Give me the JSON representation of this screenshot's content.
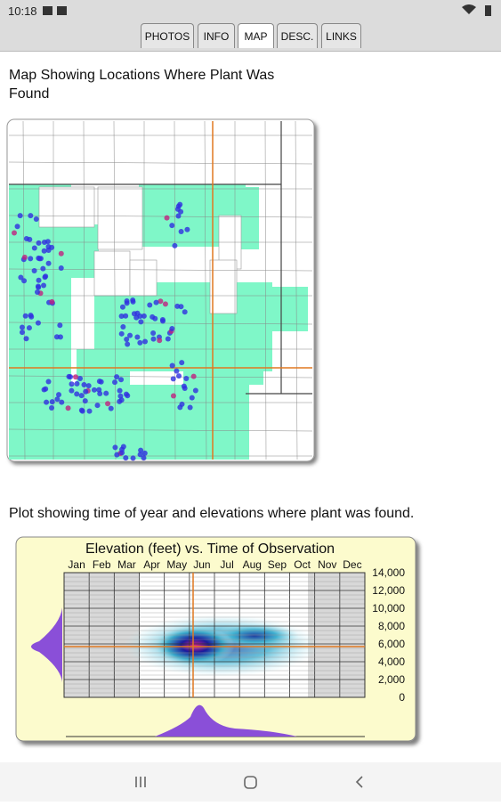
{
  "status_bar": {
    "time": "10:18"
  },
  "tabs": [
    "PHOTOS",
    "INFO",
    "MAP",
    "DESC.",
    "LINKS"
  ],
  "map_section": {
    "heading": "Map Showing Locations Where Plant Was Found"
  },
  "plot_section": {
    "heading": "Plot showing time of year and elevations where plant was found.",
    "title": "Elevation (feet) vs. Time of Observation",
    "months": [
      "Jan",
      "Feb",
      "Mar",
      "Apr",
      "May",
      "Jun",
      "Jul",
      "Aug",
      "Sep",
      "Oct",
      "Nov",
      "Dec"
    ],
    "elevation_labels": [
      "14,000",
      "12,000",
      "10,000",
      "8,000",
      "6,000",
      "4,000",
      "2,000",
      "0"
    ]
  }
}
